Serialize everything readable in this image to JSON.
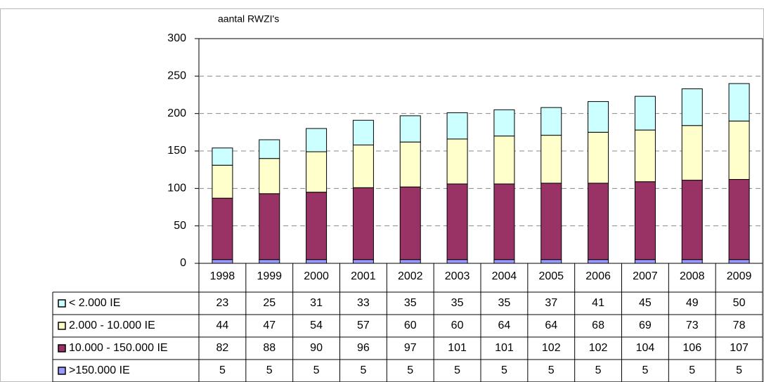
{
  "chart_data": {
    "type": "stacked-bar",
    "y_axis_label": "aantal RWZI's",
    "categories": [
      "1998",
      "1999",
      "2000",
      "2001",
      "2002",
      "2003",
      "2004",
      "2005",
      "2006",
      "2007",
      "2008",
      "2009"
    ],
    "series": [
      {
        "name": "< 2.000 IE",
        "color": "#ccffff",
        "values": [
          23,
          25,
          31,
          33,
          35,
          35,
          35,
          37,
          41,
          45,
          49,
          50
        ]
      },
      {
        "name": "2.000 - 10.000 IE",
        "color": "#ffffcc",
        "values": [
          44,
          47,
          54,
          57,
          60,
          60,
          64,
          64,
          68,
          69,
          73,
          78
        ]
      },
      {
        "name": "10.000 - 150.000 IE",
        "color": "#993366",
        "values": [
          82,
          88,
          90,
          96,
          97,
          101,
          101,
          102,
          102,
          104,
          106,
          107
        ]
      },
      {
        "name": ">150.000 IE",
        "color": "#9999ff",
        "values": [
          5,
          5,
          5,
          5,
          5,
          5,
          5,
          5,
          5,
          5,
          5,
          5
        ]
      }
    ],
    "ylim": [
      0,
      300
    ],
    "yticks": [
      0,
      50,
      100,
      150,
      200,
      250,
      300
    ],
    "grid": true,
    "data_table": true
  }
}
